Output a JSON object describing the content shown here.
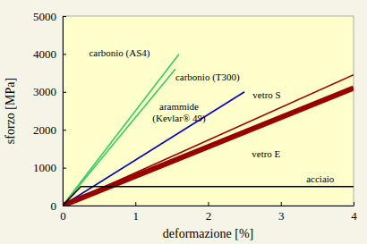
{
  "chart_data": {
    "type": "line",
    "x_label": "deformazione [%]",
    "y_label": "sforzo [MPa]",
    "xlim": [
      0,
      4
    ],
    "xticks": [
      0,
      1,
      2,
      3,
      4
    ],
    "ylim": [
      0,
      5000
    ],
    "yticks": [
      0,
      1000,
      2000,
      3000,
      4000,
      5000
    ],
    "grid": false,
    "series": [
      {
        "name": "carbonio (AS4)",
        "color": "#33cc66",
        "x": [
          0,
          1.6
        ],
        "values": [
          0,
          4000
        ]
      },
      {
        "name": "carbonio (T300)",
        "color": "#33cc66",
        "x": [
          0,
          1.55
        ],
        "values": [
          0,
          3600
        ]
      },
      {
        "name": "arammide (Kevlar® 49)",
        "color": "#0000cc",
        "x": [
          0,
          2.5
        ],
        "values": [
          0,
          3000
        ]
      },
      {
        "name": "vetro S",
        "color": "#990000",
        "x": [
          0,
          4
        ],
        "values": [
          0,
          3450
        ]
      },
      {
        "name": "vetro E",
        "color": "#990000",
        "x": [
          0,
          4
        ],
        "values": [
          0,
          3100
        ]
      },
      {
        "name": "acciaio",
        "color": "#000000",
        "x": [
          0,
          0.25,
          4
        ],
        "values": [
          0,
          500,
          500
        ]
      }
    ]
  }
}
